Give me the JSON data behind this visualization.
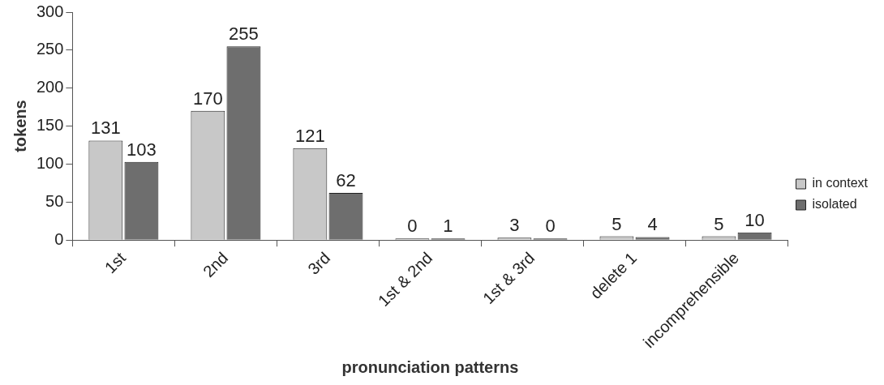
{
  "chart_data": {
    "type": "bar",
    "xlabel": "pronunciation patterns",
    "ylabel": "tokens",
    "categories": [
      "1st",
      "2nd",
      "3rd",
      "1st & 2nd",
      "1st & 3rd",
      "delete 1",
      "incomprehensible"
    ],
    "series": [
      {
        "name": "in context",
        "color": "#c8c8c8",
        "values": [
          131,
          170,
          121,
          0,
          3,
          5,
          5
        ]
      },
      {
        "name": "isolated",
        "color": "#6e6e6e",
        "values": [
          103,
          255,
          62,
          1,
          0,
          4,
          10
        ]
      }
    ],
    "ylim": [
      0,
      300
    ],
    "yticks": [
      0,
      50,
      100,
      150,
      200,
      250,
      300
    ],
    "grid": false,
    "legend": "right",
    "data_labels": true
  }
}
